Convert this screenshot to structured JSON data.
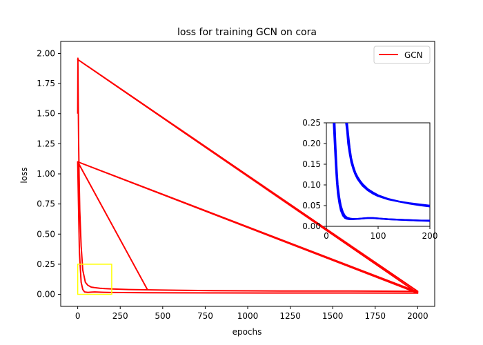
{
  "chart_data": {
    "type": "line",
    "title": "loss for training GCN on cora",
    "xlabel": "epochs",
    "ylabel": "loss",
    "xlim": [
      -100,
      2100
    ],
    "ylim": [
      -0.1,
      2.1
    ],
    "xticks": [
      0,
      250,
      500,
      750,
      1000,
      1250,
      1500,
      1750,
      2000
    ],
    "yticks": [
      0.0,
      0.25,
      0.5,
      0.75,
      1.0,
      1.25,
      1.5,
      1.75,
      2.0
    ],
    "grid": false,
    "legend_position": "top-right",
    "series": [
      {
        "name": "GCN",
        "color": "#ff0000",
        "x": [
          0,
          1,
          2,
          3,
          5,
          8,
          12,
          20,
          30,
          45,
          60,
          80,
          100,
          130,
          160,
          200,
          300,
          500,
          800,
          1200,
          1600,
          2000,
          0,
          2000,
          0,
          2000,
          0,
          410,
          0,
          5,
          10,
          20,
          30,
          40,
          60,
          80,
          100,
          150,
          200,
          400,
          800,
          1200,
          1600,
          2000
        ],
        "y": [
          1.5,
          1.96,
          1.8,
          1.6,
          1.3,
          1.0,
          0.7,
          0.4,
          0.2,
          0.1,
          0.075,
          0.06,
          0.055,
          0.05,
          0.047,
          0.045,
          0.04,
          0.035,
          0.03,
          0.028,
          0.027,
          0.025,
          1.95,
          0.01,
          1.1,
          0.02,
          1.1,
          0.04,
          1.1,
          0.7,
          0.35,
          0.1,
          0.04,
          0.02,
          0.016,
          0.018,
          0.02,
          0.017,
          0.015,
          0.013,
          0.012,
          0.011,
          0.011,
          0.01
        ]
      }
    ],
    "zoom_box": {
      "x": [
        0,
        200
      ],
      "y": [
        0,
        0.25
      ],
      "color": "#ffff00"
    },
    "inset": {
      "xlim": [
        0,
        200
      ],
      "ylim": [
        0,
        0.25
      ],
      "xticks": [
        0,
        100,
        200
      ],
      "yticks": [
        0.0,
        0.05,
        0.1,
        0.15,
        0.2,
        0.25
      ],
      "color": "#0000ff",
      "series": [
        {
          "x": [
            14,
            16,
            18,
            20,
            22,
            25,
            28,
            32,
            36,
            40,
            45,
            50,
            60,
            70,
            80,
            90,
            100,
            120,
            140,
            160,
            180,
            200
          ],
          "y": [
            0.26,
            0.2,
            0.15,
            0.11,
            0.08,
            0.055,
            0.038,
            0.026,
            0.02,
            0.018,
            0.017,
            0.017,
            0.018,
            0.019,
            0.02,
            0.02,
            0.019,
            0.017,
            0.016,
            0.015,
            0.014,
            0.014
          ]
        },
        {
          "x": [
            16,
            18,
            20,
            22,
            25,
            28,
            32,
            36,
            40,
            45,
            50,
            60,
            70,
            80,
            90,
            100,
            120,
            140,
            160,
            180,
            200
          ],
          "y": [
            0.26,
            0.19,
            0.14,
            0.1,
            0.07,
            0.05,
            0.034,
            0.025,
            0.021,
            0.019,
            0.018,
            0.018,
            0.019,
            0.02,
            0.02,
            0.019,
            0.017,
            0.016,
            0.015,
            0.014,
            0.013
          ]
        },
        {
          "x": [
            38,
            40,
            42,
            45,
            48,
            52,
            56,
            60,
            65,
            70,
            80,
            90,
            100,
            120,
            140,
            160,
            180,
            200
          ],
          "y": [
            0.26,
            0.23,
            0.2,
            0.175,
            0.155,
            0.138,
            0.125,
            0.115,
            0.106,
            0.098,
            0.087,
            0.079,
            0.073,
            0.065,
            0.06,
            0.056,
            0.053,
            0.05
          ]
        },
        {
          "x": [
            40,
            42,
            45,
            48,
            52,
            56,
            60,
            65,
            70,
            80,
            90,
            100,
            120,
            140,
            160,
            180,
            200
          ],
          "y": [
            0.26,
            0.225,
            0.19,
            0.165,
            0.145,
            0.13,
            0.12,
            0.11,
            0.102,
            0.09,
            0.082,
            0.075,
            0.066,
            0.06,
            0.055,
            0.051,
            0.048
          ]
        }
      ]
    }
  }
}
